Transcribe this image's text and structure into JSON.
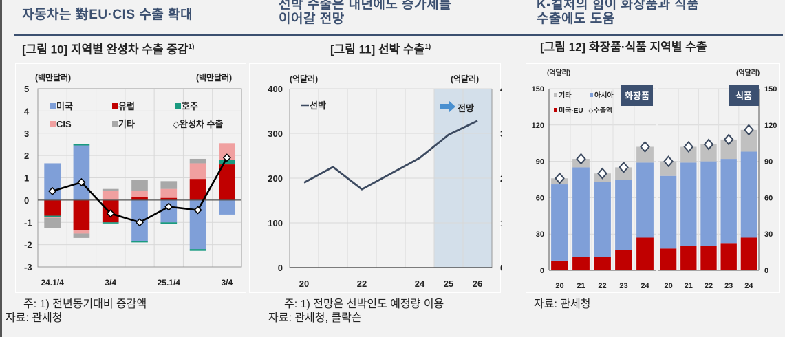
{
  "headers": [
    {
      "text": "자동차는 對EU·CIS 수출 확대"
    },
    {
      "line1": "선박 수출은 내년에도 증가세를",
      "line2": "이어갈 전망"
    },
    {
      "line1": "K-컬처의 힘이 화장품과 식품",
      "line2": "수출에도 도움"
    }
  ],
  "figures": [
    {
      "title": "[그림 10] 지역별 완성차 수출 증감",
      "sup": "1)"
    },
    {
      "title": "[그림 11] 선박 수출",
      "sup": "1)"
    },
    {
      "title": "[그림 12] 화장품·식품 지역별 수출",
      "sup": ""
    }
  ],
  "notes": {
    "fig10_note": "주: 1) 전년동기대비 증감액",
    "fig10_source": "자료: 관세청",
    "fig11_note": "주: 1) 전망은 선박인도 예정량 이용",
    "fig11_source": "자료: 관세청, 클락슨",
    "fig12_source": "자료: 관세청"
  },
  "colors": {
    "us": "#7f9fd8",
    "eu": "#c00000",
    "australia": "#1a9a80",
    "cis": "#f0a0a0",
    "other": "#a8a8a8",
    "line": "#000000",
    "ship_line": "#3c4a60",
    "forecast_band": "#d3dfea",
    "asia": "#7f9fd8",
    "us_eu": "#c00000",
    "other_light": "#c0c0c0",
    "badge": "#3c5070",
    "header": "#3c5070"
  },
  "chart_data": [
    {
      "type": "bar",
      "stacked": true,
      "title": "[그림 10] 지역별 완성차 수출 증감1)",
      "ylabel_left": "(백만달러)",
      "ylabel_right": "(백만달러)",
      "ylim": [
        -3,
        5
      ],
      "yticks": [
        5,
        4,
        3,
        2,
        1,
        0,
        -1,
        -2,
        -3
      ],
      "categories": [
        "24.1/4",
        "2/4",
        "3/4",
        "4/4",
        "25.1/4",
        "2/4",
        "3/4"
      ],
      "xtick_labels": [
        "24.1/4",
        "",
        "3/4",
        "",
        "25.1/4",
        "",
        "3/4"
      ],
      "legend": [
        "미국",
        "유럽",
        "호주",
        "CIS",
        "기타",
        "◇완성차 수출"
      ],
      "series": [
        {
          "name": "미국",
          "values": [
            1.65,
            2.45,
            0.0,
            -1.85,
            -1.0,
            -2.2,
            -0.65
          ]
        },
        {
          "name": "유럽",
          "values": [
            -0.7,
            -1.35,
            -1.0,
            0.15,
            0.1,
            0.95,
            1.6
          ]
        },
        {
          "name": "호주",
          "values": [
            -0.05,
            0.05,
            -0.05,
            -0.05,
            -0.07,
            -0.08,
            0.2
          ]
        },
        {
          "name": "CIS",
          "values": [
            -0.05,
            -0.15,
            0.4,
            0.25,
            0.4,
            0.7,
            0.75
          ]
        },
        {
          "name": "기타",
          "values": [
            -0.45,
            -0.2,
            0.1,
            0.5,
            0.35,
            0.2,
            0.0
          ]
        },
        {
          "name": "완성차 수출",
          "type": "line",
          "values": [
            0.4,
            0.8,
            -0.6,
            -1.0,
            -0.3,
            -0.45,
            1.9
          ]
        }
      ]
    },
    {
      "type": "line",
      "title": "[그림 11] 선박 수출1)",
      "ylabel_left": "(억달러)",
      "ylabel_right": "(억달러)",
      "ylim": [
        0,
        400
      ],
      "yticks": [
        400,
        300,
        200,
        100,
        0
      ],
      "x": [
        "20",
        "21",
        "22",
        "23",
        "24",
        "25",
        "26"
      ],
      "xtick_labels": [
        "20",
        "",
        "22",
        "",
        "24",
        "25",
        "26"
      ],
      "legend": [
        "선박"
      ],
      "annotation": "전망",
      "forecast_range": [
        "25",
        "26"
      ],
      "series": [
        {
          "name": "선박",
          "values": [
            190,
            225,
            175,
            210,
            245,
            297,
            328
          ]
        }
      ]
    },
    {
      "type": "bar",
      "stacked": true,
      "title": "[그림 12] 화장품·식품 지역별 수출",
      "ylabel_left": "(억달러)",
      "ylabel_right": "(억달러)",
      "ylim": [
        0,
        150
      ],
      "yticks": [
        150,
        120,
        90,
        60,
        30,
        0
      ],
      "legend": [
        "기타",
        "아시아",
        "미국·EU",
        "◇수출액"
      ],
      "panels": [
        {
          "name": "화장품",
          "categories": [
            "20",
            "21",
            "22",
            "23",
            "24"
          ],
          "series": [
            {
              "name": "미국·EU",
              "values": [
                8,
                11,
                11,
                17,
                27
              ]
            },
            {
              "name": "아시아",
              "values": [
                63,
                74,
                62,
                58,
                62
              ]
            },
            {
              "name": "기타",
              "values": [
                5,
                7,
                7,
                10,
                13
              ]
            },
            {
              "name": "수출액",
              "type": "marker",
              "values": [
                76,
                92,
                80,
                85,
                102
              ]
            }
          ]
        },
        {
          "name": "식품",
          "categories": [
            "20",
            "21",
            "22",
            "23",
            "24"
          ],
          "series": [
            {
              "name": "미국·EU",
              "values": [
                18,
                20,
                20,
                22,
                27
              ]
            },
            {
              "name": "아시아",
              "values": [
                60,
                69,
                70,
                70,
                71
              ]
            },
            {
              "name": "기타",
              "values": [
                12,
                13,
                14,
                16,
                18
              ]
            },
            {
              "name": "수출액",
              "type": "marker",
              "values": [
                90,
                102,
                104,
                108,
                116
              ]
            }
          ]
        }
      ]
    }
  ]
}
